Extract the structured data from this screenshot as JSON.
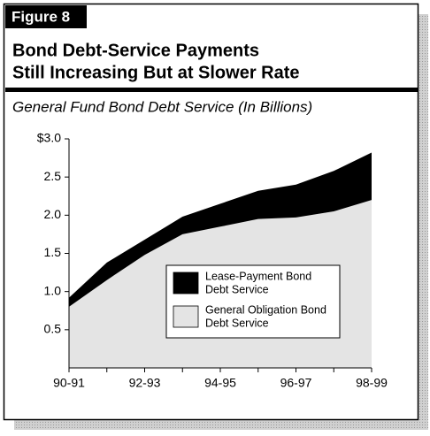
{
  "chart_data": {
    "type": "stacked-area",
    "figure_label": "Figure 8",
    "title": [
      "Bond Debt-Service Payments",
      "Still Increasing But at Slower Rate"
    ],
    "subtitle": "General Fund Bond Debt Service (In Billions)",
    "categories": [
      "90-91",
      null,
      "92-93",
      null,
      "94-95",
      null,
      "96-97",
      null,
      "98-99"
    ],
    "series": [
      {
        "name": [
          "Lease-Payment Bond",
          "Debt Service"
        ],
        "color": "#000000",
        "values": [
          0.12,
          0.23,
          0.2,
          0.23,
          0.3,
          0.37,
          0.43,
          0.53,
          0.62
        ]
      },
      {
        "name": [
          "General Obligation Bond",
          "Debt Service"
        ],
        "color": "#e4e4e4",
        "values": [
          0.8,
          1.15,
          1.48,
          1.75,
          1.85,
          1.95,
          1.97,
          2.05,
          2.2
        ]
      }
    ],
    "ylim": [
      0,
      3
    ],
    "yticks": [
      {
        "value": 0.5,
        "label": "0.5"
      },
      {
        "value": 1,
        "label": "1.0"
      },
      {
        "value": 1.5,
        "label": "1.5"
      },
      {
        "value": 2,
        "label": "2.0"
      },
      2.5,
      {
        "value": 3,
        "label": "$3.0"
      }
    ]
  }
}
